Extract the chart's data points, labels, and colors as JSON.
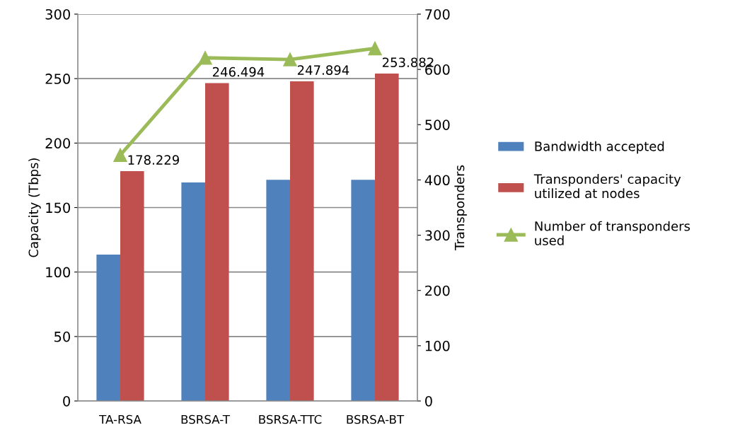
{
  "chart_data": {
    "type": "bar",
    "categories": [
      "TA-RSA",
      "BSRSA-T",
      "BSRSA-TTC",
      "BSRSA-BT"
    ],
    "ylabel": "Capacity (Tbps)",
    "y2label": "Transponders",
    "ylim": [
      0,
      300
    ],
    "yticks": [
      0,
      50,
      100,
      150,
      200,
      250,
      300
    ],
    "y2lim": [
      0,
      700
    ],
    "y2ticks": [
      0,
      100,
      200,
      300,
      400,
      500,
      600,
      700
    ],
    "grid": "y",
    "legend": "right",
    "series": [
      {
        "name": "Bandwidth accepted",
        "color": "#4f81bd",
        "values": [
          113.5,
          169.5,
          171.5,
          171.5
        ]
      },
      {
        "name": "Transponders' capacity utilized at nodes",
        "color": "#c0504d",
        "values": [
          178.229,
          246.494,
          247.894,
          253.882
        ],
        "data_labels": true
      },
      {
        "name": "Number of transponders used",
        "type": "line",
        "axis": "y2",
        "color": "#9bbb59",
        "marker": "triangle",
        "values": [
          445,
          621,
          618,
          638
        ]
      }
    ]
  }
}
